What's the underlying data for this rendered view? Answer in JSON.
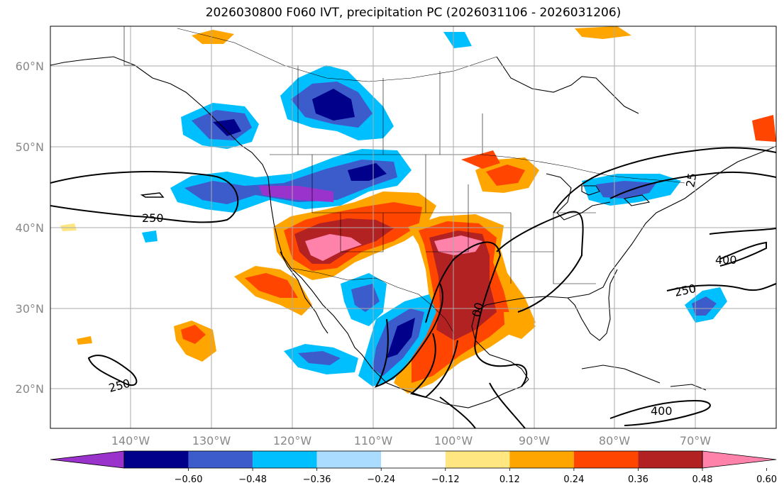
{
  "title": "2026030800 F060 IVT, precipitation PC (2026031106 - 2026031206)",
  "lat_labels": [
    "60°N",
    "50°N",
    "40°N",
    "30°N",
    "20°N"
  ],
  "lon_labels": [
    "140°W",
    "130°W",
    "120°W",
    "110°W",
    "100°W",
    "90°W",
    "80°W",
    "70°W"
  ],
  "contour_labels": {
    "c250_west": "250",
    "c250_south": "250",
    "c250_atlantic": "250",
    "c400_atlantic": "400",
    "c400_caribbean": "400",
    "c00_gulf": "00",
    "c25_northeast": "25"
  },
  "colorbar": {
    "ticks": [
      "−0.60",
      "−0.48",
      "−0.36",
      "−0.24",
      "−0.12",
      "0.12",
      "0.24",
      "0.36",
      "0.48",
      "0.60"
    ],
    "colors": [
      "#9933cc",
      "#00008b",
      "#3d5ccc",
      "#00bfff",
      "#aadcff",
      "#ffffff",
      "#ffe680",
      "#ffa500",
      "#ff4500",
      "#b22222",
      "#ff82ab"
    ]
  },
  "colors": {
    "grid": "#aaaaaa",
    "coast": "#000000"
  }
}
